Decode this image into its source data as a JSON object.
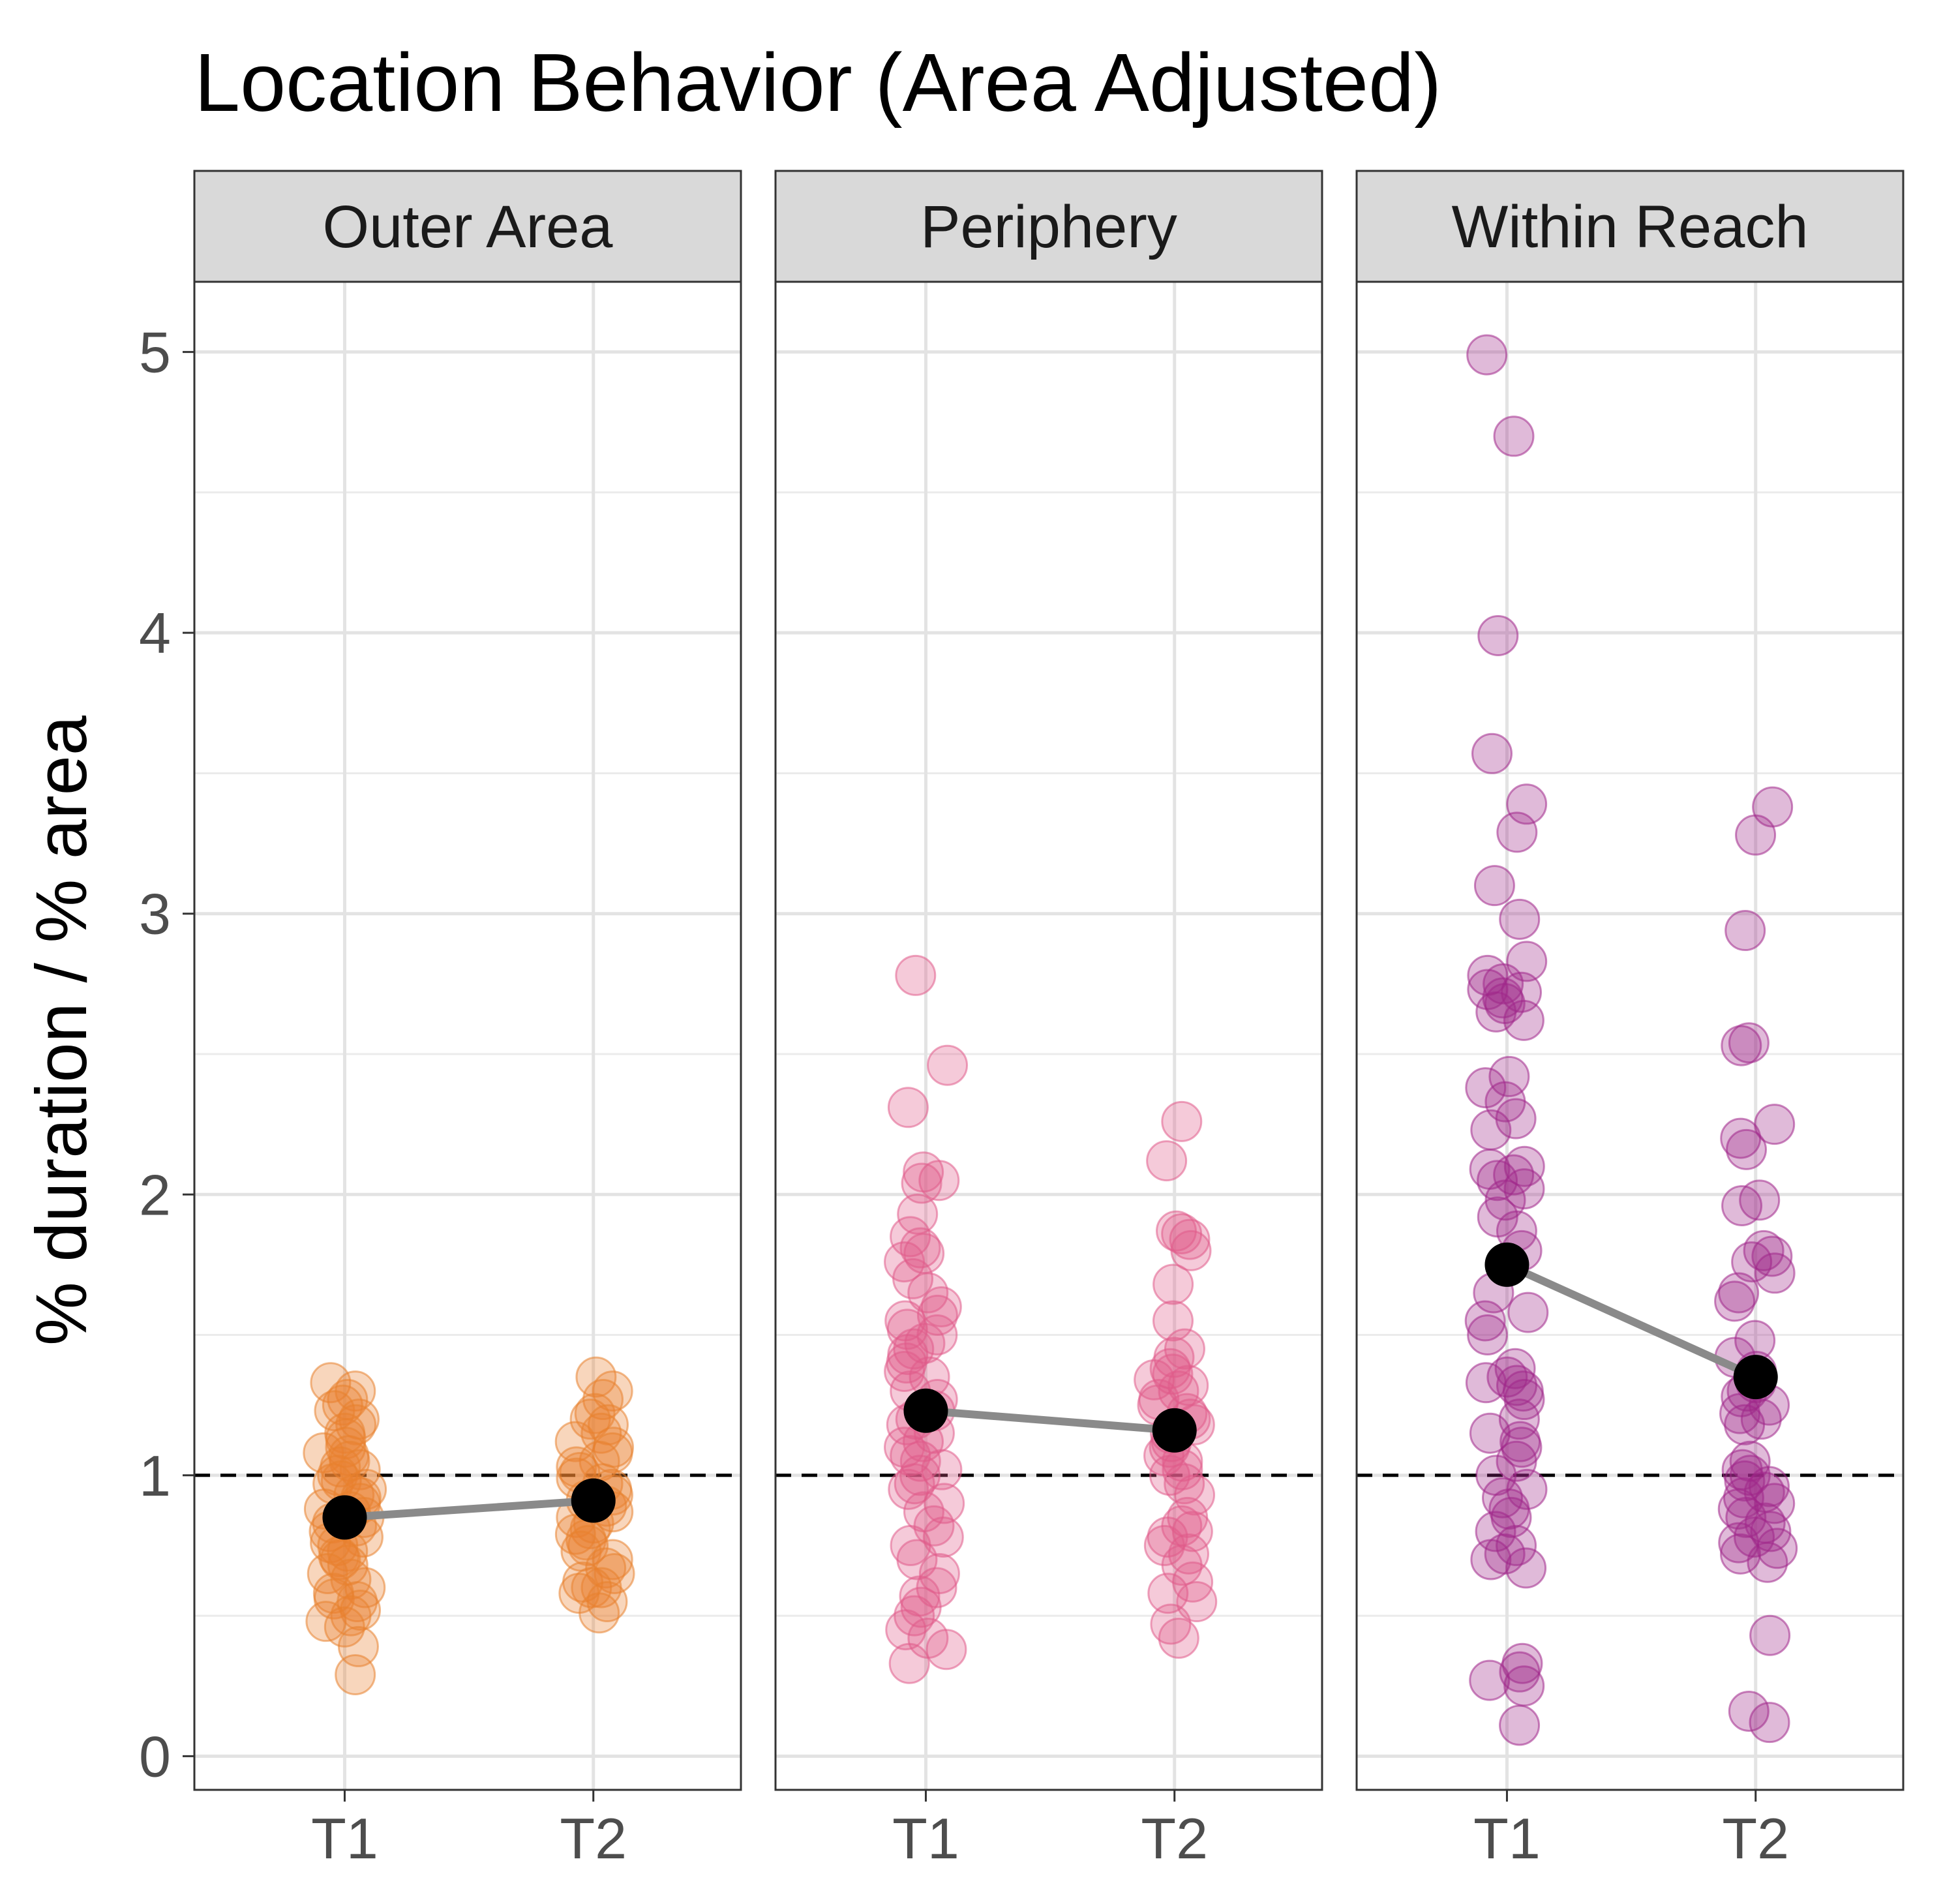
{
  "chart_data": {
    "type": "scatter",
    "title": "Location Behavior (Area Adjusted)",
    "xlabel": "",
    "ylabel": "% duration / % area",
    "ylim": [
      -0.12,
      5.25
    ],
    "yticks": [
      0,
      1,
      2,
      3,
      4,
      5
    ],
    "categories": [
      "T1",
      "T2"
    ],
    "reference_line": {
      "y": 1,
      "style": "dashed"
    },
    "grid": true,
    "colors": {
      "Outer Area": "#E8812E",
      "Periphery": "#E05B8A",
      "Within Reach": "#A0278A",
      "mean_point": "#000000",
      "mean_line": "#8a8a8a",
      "strip_fill": "#d9d9d9"
    },
    "panels": [
      {
        "name": "Outer Area",
        "means": {
          "T1": 0.85,
          "T2": 0.91
        },
        "points": {
          "T1": [
            1.33,
            1.3,
            1.27,
            1.25,
            1.23,
            1.2,
            1.18,
            1.15,
            1.13,
            1.1,
            1.08,
            1.07,
            1.05,
            1.03,
            1.02,
            1.0,
            0.98,
            0.97,
            0.95,
            0.93,
            0.92,
            0.9,
            0.88,
            0.87,
            0.85,
            0.83,
            0.82,
            0.8,
            0.78,
            0.76,
            0.75,
            0.73,
            0.71,
            0.7,
            0.68,
            0.65,
            0.63,
            0.6,
            0.58,
            0.56,
            0.55,
            0.52,
            0.5,
            0.48,
            0.46,
            0.39,
            0.29
          ],
          "T2": [
            1.35,
            1.3,
            1.27,
            1.22,
            1.2,
            1.18,
            1.15,
            1.12,
            1.1,
            1.08,
            1.05,
            1.03,
            1.01,
            0.99,
            0.97,
            0.95,
            0.93,
            0.91,
            0.89,
            0.87,
            0.85,
            0.83,
            0.81,
            0.79,
            0.77,
            0.75,
            0.73,
            0.7,
            0.67,
            0.65,
            0.62,
            0.6,
            0.6,
            0.58,
            0.55,
            0.51
          ]
        }
      },
      {
        "name": "Periphery",
        "means": {
          "T1": 1.23,
          "T2": 1.16
        },
        "points": {
          "T1": [
            2.78,
            2.46,
            2.31,
            2.08,
            2.05,
            2.04,
            1.93,
            1.85,
            1.81,
            1.79,
            1.76,
            1.7,
            1.65,
            1.6,
            1.57,
            1.55,
            1.52,
            1.5,
            1.47,
            1.45,
            1.43,
            1.4,
            1.37,
            1.35,
            1.3,
            1.27,
            1.23,
            1.2,
            1.18,
            1.15,
            1.12,
            1.1,
            1.07,
            1.05,
            1.02,
            1.0,
            0.97,
            0.95,
            0.9,
            0.87,
            0.82,
            0.78,
            0.75,
            0.7,
            0.65,
            0.6,
            0.57,
            0.53,
            0.5,
            0.45,
            0.42,
            0.38,
            0.33
          ],
          "T2": [
            2.26,
            2.12,
            1.87,
            1.86,
            1.84,
            1.8,
            1.68,
            1.55,
            1.45,
            1.42,
            1.38,
            1.36,
            1.34,
            1.32,
            1.3,
            1.27,
            1.25,
            1.22,
            1.2,
            1.18,
            1.15,
            1.12,
            1.1,
            1.07,
            1.05,
            1.02,
            1.0,
            0.97,
            0.93,
            0.85,
            0.82,
            0.8,
            0.78,
            0.75,
            0.72,
            0.68,
            0.62,
            0.58,
            0.55,
            0.47,
            0.42
          ]
        }
      },
      {
        "name": "Within Reach",
        "means": {
          "T1": 1.75,
          "T2": 1.35
        },
        "points": {
          "T1": [
            4.99,
            4.7,
            3.99,
            3.57,
            3.39,
            3.29,
            3.1,
            2.98,
            2.83,
            2.78,
            2.75,
            2.73,
            2.72,
            2.7,
            2.68,
            2.65,
            2.62,
            2.42,
            2.38,
            2.33,
            2.27,
            2.23,
            2.1,
            2.09,
            2.07,
            2.05,
            2.02,
            1.98,
            1.92,
            1.87,
            1.8,
            1.65,
            1.58,
            1.55,
            1.5,
            1.38,
            1.35,
            1.33,
            1.32,
            1.3,
            1.27,
            1.2,
            1.15,
            1.12,
            1.1,
            1.05,
            1.0,
            0.95,
            0.92,
            0.88,
            0.85,
            0.8,
            0.75,
            0.72,
            0.7,
            0.67,
            0.33,
            0.3,
            0.27,
            0.25,
            0.11
          ],
          "T2": [
            3.38,
            3.28,
            2.94,
            2.54,
            2.53,
            2.25,
            2.2,
            2.16,
            1.98,
            1.96,
            1.8,
            1.78,
            1.76,
            1.72,
            1.65,
            1.62,
            1.48,
            1.42,
            1.37,
            1.33,
            1.3,
            1.28,
            1.25,
            1.22,
            1.2,
            1.18,
            1.05,
            1.02,
            1.0,
            0.98,
            0.96,
            0.94,
            0.92,
            0.9,
            0.88,
            0.85,
            0.83,
            0.8,
            0.78,
            0.76,
            0.74,
            0.72,
            0.69,
            0.43,
            0.16,
            0.12
          ]
        }
      }
    ]
  }
}
